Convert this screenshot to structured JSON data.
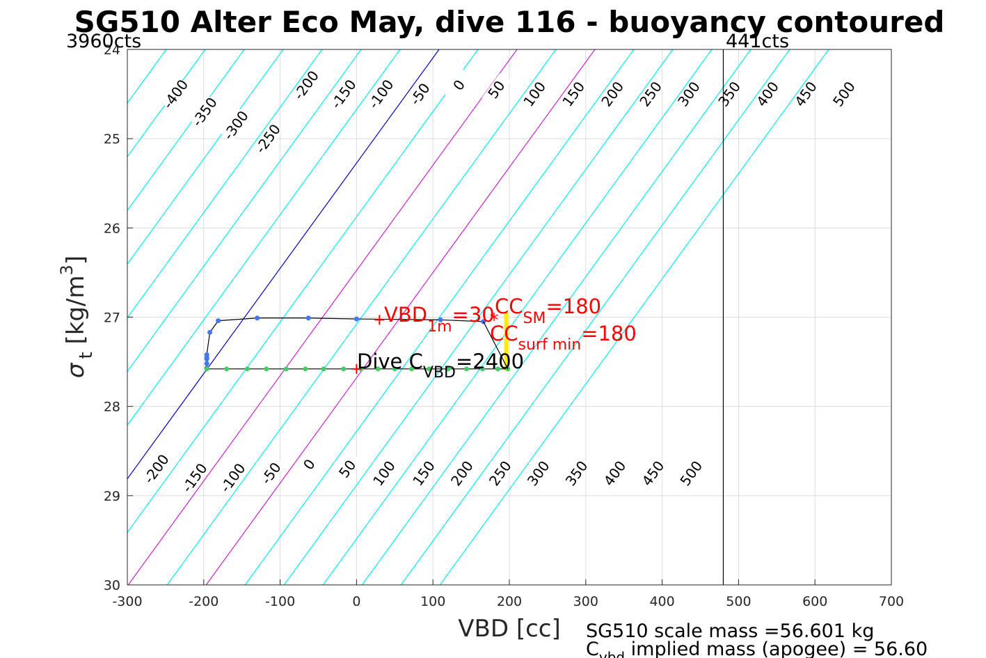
{
  "chart_data": {
    "type": "line",
    "title": "SG510 Alter Eco May, dive 116 - buoyancy contoured",
    "xlabel": "VBD [cc]",
    "ylabel": {
      "base": "σ",
      "sub": "t",
      "unit_pre": " [kg/m",
      "unit_sup": "3",
      "unit_post": "]"
    },
    "xlim": [
      -300,
      700
    ],
    "ylim": [
      24,
      30
    ],
    "y_reversed": true,
    "grid": true,
    "xticks": [
      -300,
      -200,
      -100,
      0,
      100,
      200,
      300,
      400,
      500,
      600,
      700
    ],
    "xtick_labels": [
      "-300",
      "-200",
      "-100",
      "0",
      "100",
      "200",
      "300",
      "400",
      "500",
      "600",
      "700"
    ],
    "yticks": [
      24,
      25,
      26,
      27,
      28,
      29,
      30
    ],
    "ytick_labels": [
      "24",
      "25",
      "26",
      "27",
      "28",
      "29",
      "30"
    ],
    "contours": {
      "levels": [
        -400,
        -350,
        -300,
        -250,
        -200,
        -150,
        -100,
        -50,
        0,
        50,
        100,
        150,
        200,
        250,
        300,
        350,
        400,
        450,
        500
      ],
      "x_at_sigma24": [
        -300,
        -249,
        -198,
        -147,
        -96,
        -45,
        6,
        57,
        108,
        159,
        210,
        261,
        312,
        363,
        414,
        465,
        516,
        567,
        618
      ],
      "dx_per_sigma": -84.8,
      "colors": {
        "default": "#00eeee",
        "zero": "#0000cc",
        "highlight": "#cc22cc"
      },
      "highlight_levels": [
        100,
        200
      ],
      "top_labels": [
        {
          "level": -400,
          "text": "-400",
          "x": -237,
          "y": 24.5
        },
        {
          "level": -350,
          "text": "-350",
          "x": -199,
          "y": 24.7
        },
        {
          "level": -300,
          "text": "-300",
          "x": -158,
          "y": 24.85
        },
        {
          "level": -250,
          "text": "-250",
          "x": -116,
          "y": 25.0
        },
        {
          "level": -200,
          "text": "-200",
          "x": -66,
          "y": 24.4
        },
        {
          "level": -150,
          "text": "-150",
          "x": -17,
          "y": 24.5
        },
        {
          "level": -100,
          "text": "-100",
          "x": 32,
          "y": 24.5
        },
        {
          "level": -50,
          "text": "-50",
          "x": 83,
          "y": 24.5
        },
        {
          "level": 0,
          "text": "0",
          "x": 134,
          "y": 24.4
        },
        {
          "level": 50,
          "text": "50",
          "x": 183,
          "y": 24.45
        },
        {
          "level": 100,
          "text": "100",
          "x": 233,
          "y": 24.5
        },
        {
          "level": 150,
          "text": "150",
          "x": 284,
          "y": 24.5
        },
        {
          "level": 200,
          "text": "200",
          "x": 335,
          "y": 24.5
        },
        {
          "level": 250,
          "text": "250",
          "x": 385,
          "y": 24.5
        },
        {
          "level": 300,
          "text": "300",
          "x": 435,
          "y": 24.5
        },
        {
          "level": 350,
          "text": "350",
          "x": 488,
          "y": 24.5
        },
        {
          "level": 400,
          "text": "400",
          "x": 538,
          "y": 24.5
        },
        {
          "level": 450,
          "text": "450",
          "x": 588,
          "y": 24.5
        },
        {
          "level": 500,
          "text": "500",
          "x": 638,
          "y": 24.5
        }
      ],
      "bottom_labels": [
        {
          "level": -200,
          "text": "-200",
          "x": -262,
          "y": 28.7
        },
        {
          "level": -150,
          "text": "-150",
          "x": -212,
          "y": 28.8
        },
        {
          "level": -100,
          "text": "-100",
          "x": -162,
          "y": 28.8
        },
        {
          "level": -50,
          "text": "-50",
          "x": -112,
          "y": 28.75
        },
        {
          "level": 0,
          "text": "0",
          "x": -62,
          "y": 28.65
        },
        {
          "level": 50,
          "text": "50",
          "x": -12,
          "y": 28.7
        },
        {
          "level": 100,
          "text": "100",
          "x": 36,
          "y": 28.75
        },
        {
          "level": 150,
          "text": "150",
          "x": 88,
          "y": 28.75
        },
        {
          "level": 200,
          "text": "200",
          "x": 138,
          "y": 28.75
        },
        {
          "level": 250,
          "text": "250",
          "x": 188,
          "y": 28.75
        },
        {
          "level": 300,
          "text": "300",
          "x": 238,
          "y": 28.75
        },
        {
          "level": 350,
          "text": "350",
          "x": 288,
          "y": 28.75
        },
        {
          "level": 400,
          "text": "400",
          "x": 338,
          "y": 28.75
        },
        {
          "level": 450,
          "text": "450",
          "x": 388,
          "y": 28.75
        },
        {
          "level": 500,
          "text": "500",
          "x": 438,
          "y": 28.75
        }
      ]
    },
    "series": [
      {
        "name": "",
        "color": "#000000",
        "marker_color": "#4477ee",
        "x": [
          166,
          110,
          0,
          -63,
          -130,
          -181,
          -192,
          -196,
          -196,
          -196,
          -196,
          -196
        ],
        "y": [
          27.05,
          27.03,
          27.02,
          27.01,
          27.01,
          27.04,
          27.17,
          27.42,
          27.45,
          27.47,
          27.52,
          27.57
        ]
      },
      {
        "name": "",
        "color": "#000000",
        "marker_color": "#44cc66",
        "x": [
          -196,
          -170,
          -143,
          -118,
          -92,
          -67,
          -43,
          -17,
          6,
          28,
          50,
          72,
          95,
          120,
          144,
          165,
          185,
          198
        ],
        "y": [
          27.58,
          27.58,
          27.58,
          27.58,
          27.58,
          27.58,
          27.58,
          27.58,
          27.58,
          27.58,
          27.58,
          27.58,
          27.58,
          27.58,
          27.58,
          27.58,
          27.58,
          27.58
        ]
      }
    ],
    "vertical_line": {
      "x": 480,
      "color": "#000000"
    },
    "yellow_segment": {
      "x": 196,
      "y": [
        26.95,
        27.6
      ],
      "color": "#ffee00"
    },
    "red_plus_markers": [
      {
        "x": 30,
        "y": 27.03
      },
      {
        "x": 0,
        "y": 27.58
      }
    ],
    "red_star_marker": {
      "x": 180,
      "y": 27.03
    },
    "red_color": "#ff0000",
    "annotations": {
      "vbd1m": {
        "pre": "VBD",
        "sub": "1m",
        "post": "=30"
      },
      "ccsm": {
        "pre": "CC",
        "sub": "SM",
        "post": "=180"
      },
      "ccsurf": {
        "pre": "CC",
        "sub": "surf min",
        "post": "=180"
      },
      "dive_cvbd": {
        "pre": "Dive C",
        "sub": "VBD",
        "post": "=2400"
      }
    },
    "counts_left": "3960cts",
    "counts_right": "441cts",
    "footer_line1": "SG510 scale mass =56.601 kg",
    "footer_line2": {
      "pre": "C",
      "sub": "vbd",
      "post": " implied mass (apogee) = 56.60"
    }
  }
}
